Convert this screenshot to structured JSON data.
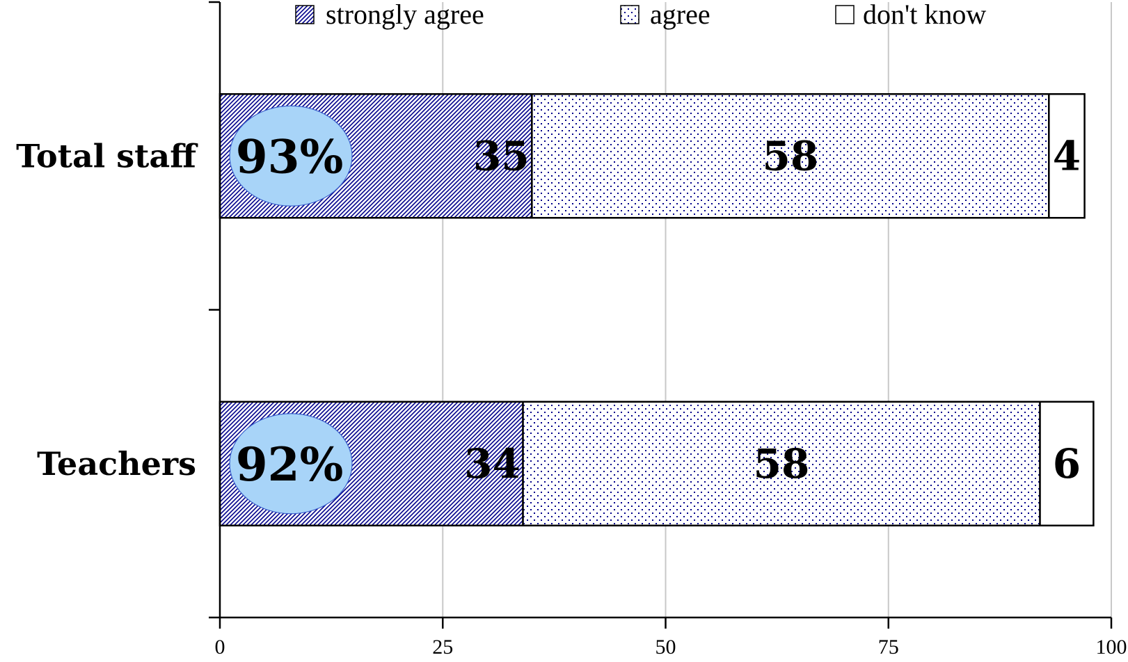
{
  "chart_data": {
    "type": "bar",
    "orientation": "horizontal",
    "stacked": true,
    "title": "",
    "xlabel": "",
    "ylabel": "",
    "categories": [
      "Total staff",
      "Teachers"
    ],
    "series": [
      {
        "name": "strongly agree",
        "values": [
          35,
          34
        ],
        "pattern": "diagonal-hatch",
        "color": "#00008B"
      },
      {
        "name": "agree",
        "values": [
          58,
          58
        ],
        "pattern": "dots",
        "color": "#00008B"
      },
      {
        "name": "don't know",
        "values": [
          4,
          6
        ],
        "pattern": "none",
        "color": "#ffffff"
      }
    ],
    "data_labels": [
      [
        "35",
        "58",
        "4"
      ],
      [
        "34",
        "58",
        "6"
      ]
    ],
    "callouts": [
      {
        "category": "Total staff",
        "text": "93%"
      },
      {
        "category": "Teachers",
        "text": "92%"
      }
    ],
    "callout_color": "#A8D4F8",
    "xlim": [
      0,
      100
    ],
    "xticks": [
      0,
      25,
      50,
      75,
      100
    ],
    "xtick_labels": [
      "0",
      "25",
      "50",
      "75",
      "100"
    ],
    "grid": "vertical",
    "grid_color": "#C8C8C8",
    "legend": {
      "position": "top"
    }
  }
}
